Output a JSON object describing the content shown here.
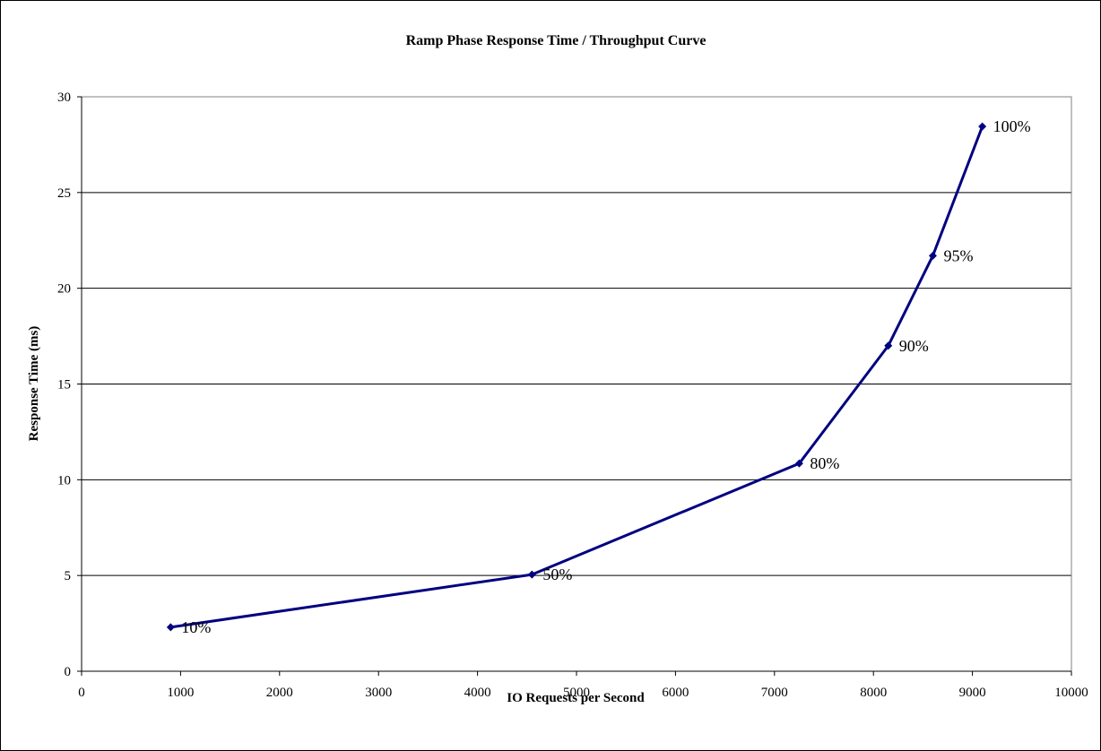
{
  "chart_data": {
    "type": "line",
    "title": "Ramp Phase Response Time / Throughput Curve",
    "xlabel": "IO Requests per Second",
    "ylabel": "Response Time (ms)",
    "xlim": [
      0,
      10000
    ],
    "ylim": [
      0,
      30
    ],
    "x_ticks": [
      0,
      1000,
      2000,
      3000,
      4000,
      5000,
      6000,
      7000,
      8000,
      9000,
      10000
    ],
    "y_ticks": [
      0,
      5,
      10,
      15,
      20,
      25,
      30
    ],
    "grid": "horizontal",
    "series": [
      {
        "color": "#000080",
        "points": [
          {
            "x": 900,
            "y": 2.3,
            "label": "10%"
          },
          {
            "x": 4550,
            "y": 5.05,
            "label": "50%"
          },
          {
            "x": 7250,
            "y": 10.85,
            "label": "80%"
          },
          {
            "x": 8150,
            "y": 17.0,
            "label": "90%"
          },
          {
            "x": 8600,
            "y": 21.7,
            "label": "95%"
          },
          {
            "x": 9100,
            "y": 28.45,
            "label": "100%"
          }
        ]
      }
    ]
  }
}
